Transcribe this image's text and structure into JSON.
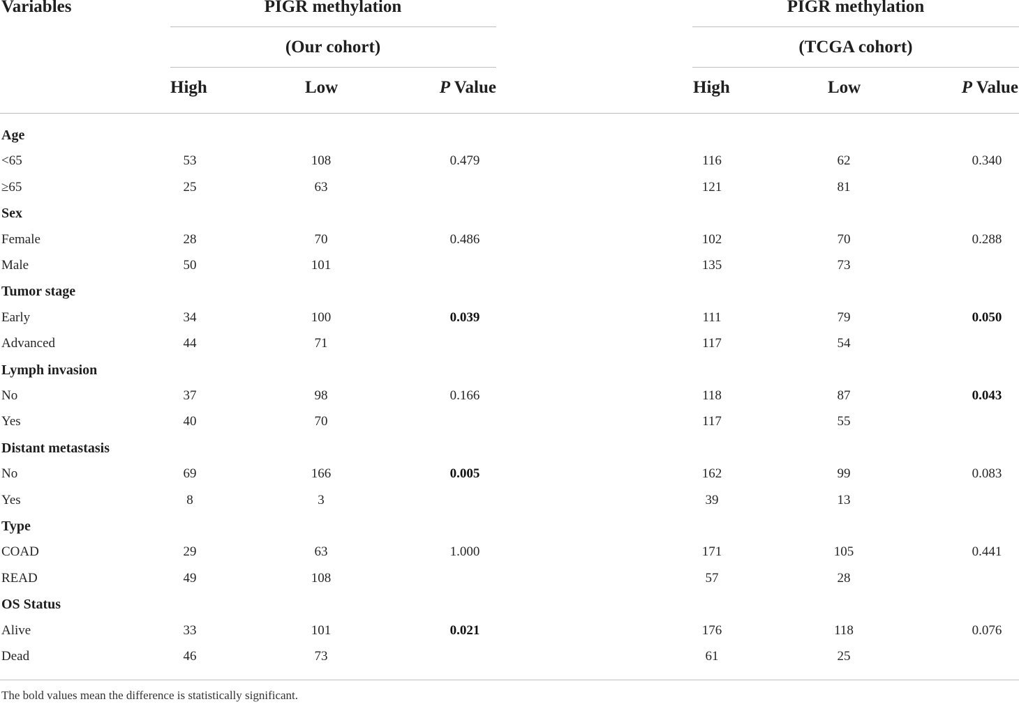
{
  "header": {
    "variables_label": "Variables",
    "our_group_title": "PIGR methylation",
    "our_group_subtitle": "(Our cohort)",
    "tcga_group_title": "PIGR methylation",
    "tcga_group_subtitle": "(TCGA cohort)",
    "col_high": "High",
    "col_low": "Low",
    "col_p_italic": "P",
    "col_p_rest": " Value"
  },
  "rows": [
    {
      "type": "category",
      "label": "Age"
    },
    {
      "type": "data",
      "label": "<65",
      "our_high": "53",
      "our_low": "108",
      "our_p": "0.479",
      "our_p_sig": false,
      "tcga_high": "116",
      "tcga_low": "62",
      "tcga_p": "0.340",
      "tcga_p_sig": false
    },
    {
      "type": "data",
      "label": "≥65",
      "our_high": "25",
      "our_low": "63",
      "our_p": "",
      "our_p_sig": false,
      "tcga_high": "121",
      "tcga_low": "81",
      "tcga_p": "",
      "tcga_p_sig": false
    },
    {
      "type": "category",
      "label": "Sex"
    },
    {
      "type": "data",
      "label": "Female",
      "our_high": "28",
      "our_low": "70",
      "our_p": "0.486",
      "our_p_sig": false,
      "tcga_high": "102",
      "tcga_low": "70",
      "tcga_p": "0.288",
      "tcga_p_sig": false
    },
    {
      "type": "data",
      "label": "Male",
      "our_high": "50",
      "our_low": "101",
      "our_p": "",
      "our_p_sig": false,
      "tcga_high": "135",
      "tcga_low": "73",
      "tcga_p": "",
      "tcga_p_sig": false
    },
    {
      "type": "category",
      "label": "Tumor stage"
    },
    {
      "type": "data",
      "label": "Early",
      "our_high": "34",
      "our_low": "100",
      "our_p": "0.039",
      "our_p_sig": true,
      "tcga_high": "111",
      "tcga_low": "79",
      "tcga_p": "0.050",
      "tcga_p_sig": true
    },
    {
      "type": "data",
      "label": "Advanced",
      "our_high": "44",
      "our_low": "71",
      "our_p": "",
      "our_p_sig": false,
      "tcga_high": "117",
      "tcga_low": "54",
      "tcga_p": "",
      "tcga_p_sig": false
    },
    {
      "type": "category",
      "label": "Lymph invasion"
    },
    {
      "type": "data",
      "label": "No",
      "our_high": "37",
      "our_low": "98",
      "our_p": "0.166",
      "our_p_sig": false,
      "tcga_high": "118",
      "tcga_low": "87",
      "tcga_p": "0.043",
      "tcga_p_sig": true
    },
    {
      "type": "data",
      "label": "Yes",
      "our_high": "40",
      "our_low": "70",
      "our_p": "",
      "our_p_sig": false,
      "tcga_high": "117",
      "tcga_low": "55",
      "tcga_p": "",
      "tcga_p_sig": false
    },
    {
      "type": "category",
      "label": "Distant metastasis"
    },
    {
      "type": "data",
      "label": "No",
      "our_high": "69",
      "our_low": "166",
      "our_p": "0.005",
      "our_p_sig": true,
      "tcga_high": "162",
      "tcga_low": "99",
      "tcga_p": "0.083",
      "tcga_p_sig": false
    },
    {
      "type": "data",
      "label": "Yes",
      "our_high": "8",
      "our_low": "3",
      "our_p": "",
      "our_p_sig": false,
      "tcga_high": "39",
      "tcga_low": "13",
      "tcga_p": "",
      "tcga_p_sig": false
    },
    {
      "type": "category",
      "label": "Type"
    },
    {
      "type": "data",
      "label": "COAD",
      "our_high": "29",
      "our_low": "63",
      "our_p": "1.000",
      "our_p_sig": false,
      "tcga_high": "171",
      "tcga_low": "105",
      "tcga_p": "0.441",
      "tcga_p_sig": false
    },
    {
      "type": "data",
      "label": "READ",
      "our_high": "49",
      "our_low": "108",
      "our_p": "",
      "our_p_sig": false,
      "tcga_high": "57",
      "tcga_low": "28",
      "tcga_p": "",
      "tcga_p_sig": false
    },
    {
      "type": "category",
      "label": "OS Status"
    },
    {
      "type": "data",
      "label": "Alive",
      "our_high": "33",
      "our_low": "101",
      "our_p": "0.021",
      "our_p_sig": true,
      "tcga_high": "176",
      "tcga_low": "118",
      "tcga_p": "0.076",
      "tcga_p_sig": false
    },
    {
      "type": "data",
      "label": "Dead",
      "our_high": "46",
      "our_low": "73",
      "our_p": "",
      "our_p_sig": false,
      "tcga_high": "61",
      "tcga_low": "25",
      "tcga_p": "",
      "tcga_p_sig": false
    }
  ],
  "footnote": "The bold values mean the difference is statistically significant."
}
